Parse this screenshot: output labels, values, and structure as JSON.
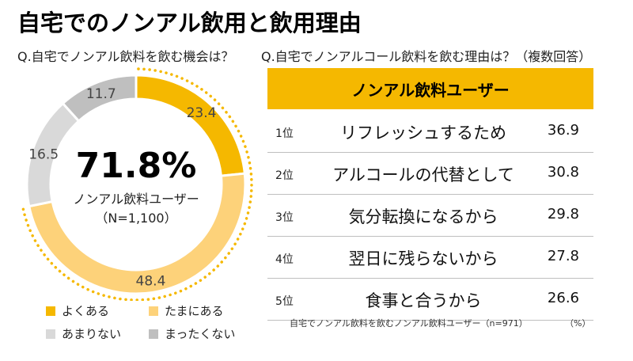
{
  "title": "自宅でのノンアル飲用と飲用理由",
  "left_question": "Q.自宅でノンアル飲料を飲む機会は？",
  "right_question": "Q.自宅でノンアルコール飲料を飲む理由は？（複数回答）",
  "colors": {
    "accent": "#f5b800",
    "often": "#f5b800",
    "sometimes": "#fdd27a",
    "rarely": "#d9d9d9",
    "never": "#bfbfbf"
  },
  "center": {
    "percentage": "71.8%",
    "label": "ノンアル飲料ユーザー",
    "n": "（N=1,100）"
  },
  "legend": [
    {
      "label": "よくある",
      "color": "#f5b800"
    },
    {
      "label": "たまにある",
      "color": "#fdd27a"
    },
    {
      "label": "あまりない",
      "color": "#d9d9d9"
    },
    {
      "label": "まったくない",
      "color": "#bfbfbf"
    }
  ],
  "table": {
    "header": "ノンアル飲料ユーザー",
    "rows": [
      {
        "rank": "1位",
        "reason": "リフレッシュするため",
        "value": "36.9"
      },
      {
        "rank": "2位",
        "reason": "アルコールの代替として",
        "value": "30.8"
      },
      {
        "rank": "3位",
        "reason": "気分転換になるから",
        "value": "29.8"
      },
      {
        "rank": "4位",
        "reason": "翌日に残らないから",
        "value": "27.8"
      },
      {
        "rank": "5位",
        "reason": "食事と合うから",
        "value": "26.6"
      }
    ],
    "footnote": "自宅でノンアル飲料を飲むノンアル飲料ユーザー（n=971）",
    "unit": "（%）"
  },
  "chart_data": [
    {
      "type": "pie",
      "categories": [
        "よくある",
        "たまにある",
        "あまりない",
        "まったくない"
      ],
      "values": [
        23.4,
        48.4,
        16.5,
        11.7
      ],
      "labels": [
        "23.4",
        "48.4",
        "16.5",
        "11.7"
      ],
      "colors": [
        "#f5b800",
        "#fdd27a",
        "#d9d9d9",
        "#bfbfbf"
      ],
      "highlight_total": "71.8%",
      "legend": "bottom"
    },
    {
      "type": "table",
      "categories": [
        "リフレッシュするため",
        "アルコールの代替として",
        "気分転換になるから",
        "翌日に残らないから",
        "食事と合うから"
      ],
      "values": [
        36.9,
        30.8,
        29.8,
        27.8,
        26.6
      ]
    }
  ]
}
